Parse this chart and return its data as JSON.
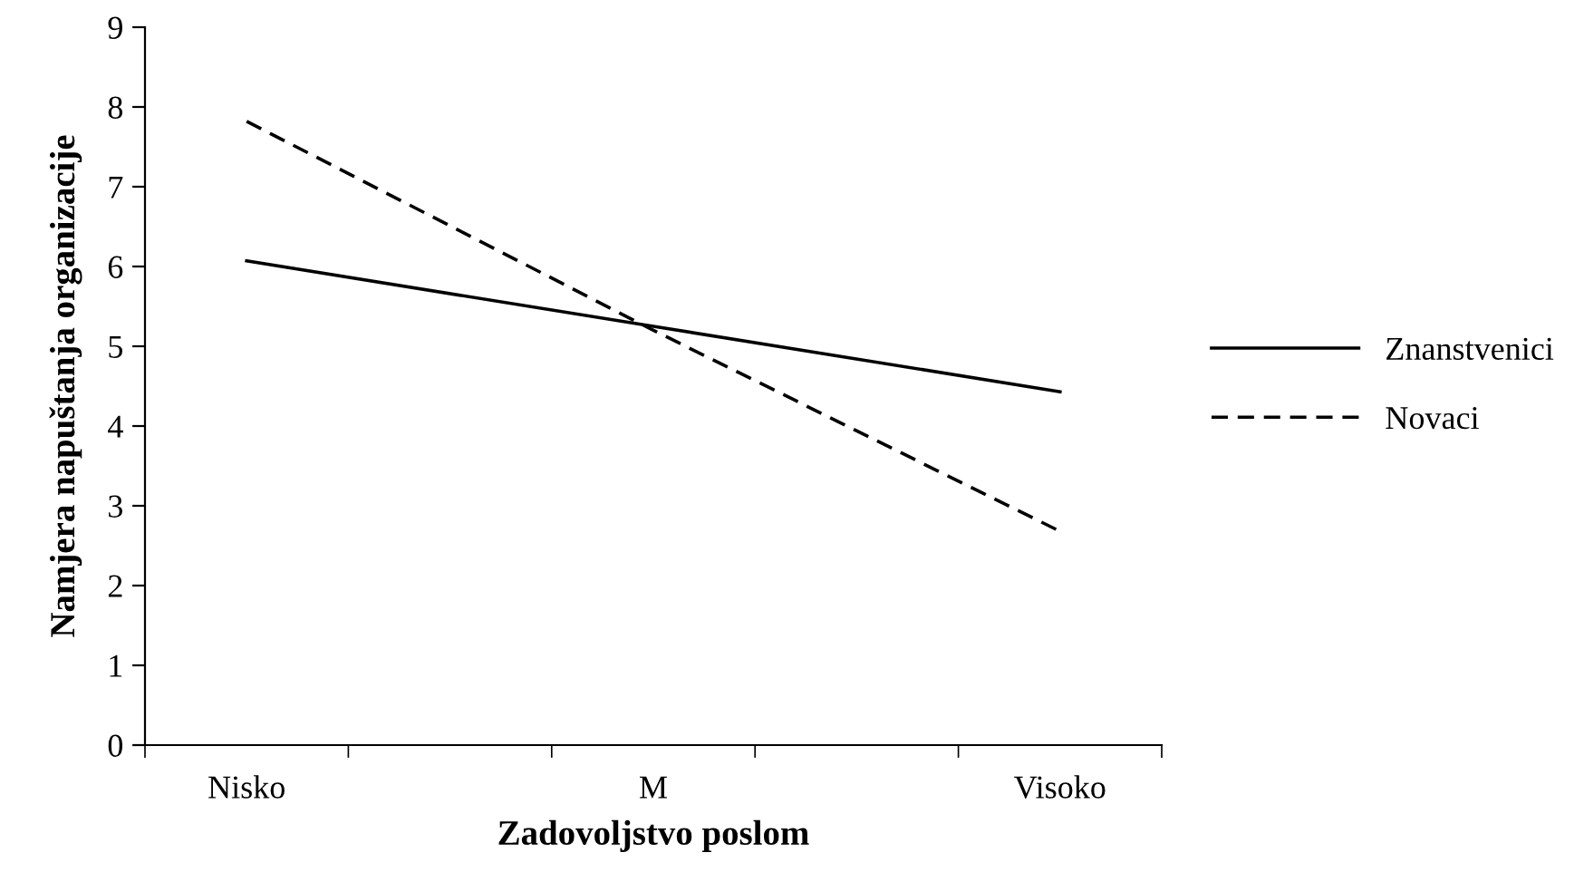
{
  "chart_data": {
    "type": "line",
    "xlabel": "Zadovoljstvo poslom",
    "ylabel": "Namjera napuštanja organizacije",
    "categories": [
      "Nisko",
      "M",
      "Visoko"
    ],
    "series": [
      {
        "name": "Znanstvenici",
        "color": "#000000",
        "line_style": "solid",
        "values": [
          6.07,
          5.25,
          4.43
        ]
      },
      {
        "name": "Novaci",
        "color": "#000000",
        "line_style": "dashed",
        "values": [
          7.82,
          5.2,
          2.68
        ]
      }
    ],
    "ylim": [
      0,
      9
    ],
    "yticks": [
      0,
      1,
      2,
      3,
      4,
      5,
      6,
      7,
      8,
      9
    ],
    "grid": false,
    "legend": "right",
    "marker": "none"
  }
}
